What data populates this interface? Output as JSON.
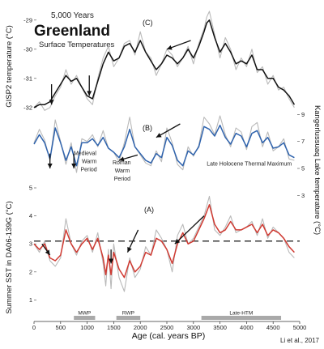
{
  "chart_data": [
    {
      "type": "line",
      "panel_label": "(C)",
      "title_lines": [
        "5,000 Years",
        "Greenland",
        "Surface Temperatures"
      ],
      "ylabel": "GISP2 temperature (°C)",
      "yticks": [
        -29,
        -30,
        -31,
        -32
      ],
      "ylim": [
        -32.2,
        -28.7
      ],
      "xlim": [
        0,
        5000
      ],
      "raw_color": "#b9b9b9",
      "smooth_color": "#111111",
      "series": [
        {
          "role": "raw",
          "x": [
            0,
            100,
            200,
            300,
            400,
            500,
            600,
            700,
            800,
            900,
            1000,
            1100,
            1200,
            1300,
            1400,
            1500,
            1600,
            1700,
            1800,
            1900,
            2000,
            2100,
            2200,
            2300,
            2400,
            2500,
            2600,
            2700,
            2800,
            2900,
            3000,
            3100,
            3200,
            3250,
            3300,
            3400,
            3500,
            3600,
            3700,
            3800,
            3900,
            4000,
            4100,
            4200,
            4300,
            4400,
            4500,
            4600,
            4700,
            4800,
            4900
          ],
          "y": [
            -32.0,
            -31.8,
            -32.1,
            -32.0,
            -31.6,
            -31.3,
            -30.7,
            -31.2,
            -30.9,
            -31.3,
            -31.7,
            -31.9,
            -31.0,
            -30.3,
            -29.9,
            -30.6,
            -30.3,
            -29.8,
            -29.7,
            -30.2,
            -29.4,
            -30.1,
            -30.3,
            -30.9,
            -30.5,
            -30.0,
            -30.2,
            -30.6,
            -30.3,
            -29.9,
            -30.5,
            -29.8,
            -29.3,
            -28.9,
            -28.7,
            -29.5,
            -30.3,
            -29.6,
            -30.0,
            -30.7,
            -30.3,
            -30.6,
            -30.0,
            -30.8,
            -30.6,
            -31.2,
            -30.9,
            -31.4,
            -31.3,
            -31.7,
            -32.0
          ]
        },
        {
          "role": "smoothed",
          "x": [
            0,
            100,
            200,
            300,
            400,
            500,
            600,
            700,
            800,
            900,
            1000,
            1100,
            1200,
            1300,
            1400,
            1500,
            1600,
            1700,
            1800,
            1900,
            2000,
            2100,
            2200,
            2300,
            2400,
            2500,
            2600,
            2700,
            2800,
            2900,
            3000,
            3100,
            3200,
            3250,
            3300,
            3400,
            3500,
            3600,
            3700,
            3800,
            3900,
            4000,
            4100,
            4200,
            4300,
            4400,
            4500,
            4600,
            4700,
            4800,
            4900
          ],
          "y": [
            -32.0,
            -31.9,
            -31.9,
            -31.8,
            -31.5,
            -31.2,
            -30.9,
            -31.1,
            -31.0,
            -31.3,
            -31.6,
            -31.7,
            -31.1,
            -30.5,
            -30.1,
            -30.4,
            -30.3,
            -29.9,
            -29.8,
            -30.1,
            -29.7,
            -30.1,
            -30.4,
            -30.7,
            -30.5,
            -30.2,
            -30.3,
            -30.5,
            -30.3,
            -30.0,
            -30.3,
            -29.9,
            -29.4,
            -29.1,
            -29.0,
            -29.6,
            -30.1,
            -29.8,
            -30.1,
            -30.5,
            -30.4,
            -30.5,
            -30.2,
            -30.7,
            -30.7,
            -31.0,
            -31.0,
            -31.3,
            -31.4,
            -31.6,
            -31.9
          ]
        }
      ],
      "arrows": [
        {
          "x1": 330,
          "y1": -31.2,
          "x2": 330,
          "y2": -31.9
        },
        {
          "x1": 1040,
          "y1": -30.9,
          "x2": 1040,
          "y2": -31.6
        },
        {
          "x1": 2950,
          "y1": -29.7,
          "x2": 2500,
          "y2": -30.0
        }
      ]
    },
    {
      "type": "line",
      "panel_label": "(B)",
      "ylabel": "Kangerlussuaq Lake temperature (°C)",
      "ylabel_side": "right",
      "yticks": [
        9,
        7,
        5,
        3
      ],
      "ylim": [
        2.6,
        9.2
      ],
      "xlim": [
        0,
        5000
      ],
      "raw_color": "#b9b9b9",
      "smooth_color": "#2f63ad",
      "annotations": [
        {
          "text": "Medieval",
          "x": 960,
          "y": 6.0
        },
        {
          "text": "Warm",
          "x": 1040,
          "y": 5.4
        },
        {
          "text": "Period",
          "x": 1030,
          "y": 4.8
        },
        {
          "text": "Roman",
          "x": 1650,
          "y": 5.3
        },
        {
          "text": "Warm",
          "x": 1660,
          "y": 4.7
        },
        {
          "text": "Period",
          "x": 1660,
          "y": 4.1
        },
        {
          "text": "Late Holocene Thermal Maximum",
          "x": 4050,
          "y": 5.2
        }
      ],
      "series": [
        {
          "role": "raw",
          "x": [
            0,
            100,
            200,
            300,
            400,
            500,
            600,
            700,
            800,
            900,
            1000,
            1100,
            1200,
            1300,
            1400,
            1500,
            1600,
            1700,
            1800,
            1900,
            2000,
            2100,
            2200,
            2300,
            2400,
            2500,
            2600,
            2700,
            2800,
            2900,
            3000,
            3100,
            3200,
            3300,
            3400,
            3500,
            3600,
            3700,
            3800,
            3900,
            4000,
            4100,
            4200,
            4300,
            4400,
            4500,
            4600,
            4700,
            4800,
            4900
          ],
          "y": [
            6.9,
            7.9,
            7.1,
            5.6,
            8.6,
            7.0,
            5.3,
            6.9,
            4.7,
            7.2,
            7.0,
            7.5,
            6.6,
            7.8,
            6.5,
            6.2,
            5.5,
            6.9,
            8.8,
            6.6,
            6.0,
            5.4,
            5.2,
            6.3,
            5.5,
            8.0,
            6.9,
            5.3,
            4.9,
            6.6,
            5.9,
            6.7,
            8.8,
            8.3,
            7.5,
            8.9,
            7.5,
            6.6,
            8.0,
            7.7,
            6.4,
            8.1,
            8.4,
            6.6,
            7.7,
            6.3,
            6.6,
            7.2,
            5.7,
            5.6
          ]
        },
        {
          "role": "smoothed",
          "x": [
            0,
            100,
            200,
            300,
            400,
            500,
            600,
            700,
            800,
            900,
            1000,
            1100,
            1200,
            1300,
            1400,
            1500,
            1600,
            1700,
            1800,
            1900,
            2000,
            2100,
            2200,
            2300,
            2400,
            2500,
            2600,
            2700,
            2800,
            2900,
            3000,
            3100,
            3200,
            3300,
            3400,
            3500,
            3600,
            3700,
            3800,
            3900,
            4000,
            4100,
            4200,
            4300,
            4400,
            4500,
            4600,
            4700,
            4800,
            4900
          ],
          "y": [
            6.8,
            7.5,
            6.9,
            5.7,
            8.0,
            6.9,
            5.6,
            6.6,
            5.2,
            6.9,
            6.9,
            7.2,
            6.7,
            7.3,
            6.5,
            6.2,
            5.8,
            6.6,
            7.9,
            6.6,
            6.1,
            5.6,
            5.4,
            6.1,
            5.8,
            7.3,
            6.7,
            5.6,
            5.2,
            6.3,
            6.0,
            6.6,
            8.1,
            7.9,
            7.4,
            8.2,
            7.3,
            6.8,
            7.6,
            7.4,
            6.6,
            7.6,
            7.8,
            6.9,
            7.3,
            6.5,
            6.6,
            6.9,
            6.0,
            5.8
          ]
        }
      ],
      "arrows": [
        {
          "x1": 300,
          "y1": 6.1,
          "x2": 300,
          "y2": 5.0
        },
        {
          "x1": 750,
          "y1": 6.1,
          "x2": 750,
          "y2": 5.0
        },
        {
          "x1": 1950,
          "y1": 6.0,
          "x2": 1600,
          "y2": 5.6
        },
        {
          "x1": 2750,
          "y1": 8.3,
          "x2": 2300,
          "y2": 7.3
        }
      ]
    },
    {
      "type": "line",
      "panel_label": "(A)",
      "ylabel": "Summer SST in DA06-139G (°C)",
      "yticks": [
        5,
        4,
        3,
        2,
        1
      ],
      "ylim": [
        0.55,
        5.0
      ],
      "xlim": [
        0,
        5000
      ],
      "xticks": [
        0,
        500,
        1000,
        1500,
        2000,
        2500,
        3000,
        3500,
        4000,
        4500,
        5000
      ],
      "xlabel": "Age (cal. years BP)",
      "reference_line": 3.1,
      "raw_color": "#b9b9b9",
      "smooth_color": "#d03a32",
      "periods": [
        {
          "label": "MWP",
          "start": 750,
          "end": 1150
        },
        {
          "label": "RWP",
          "start": 1550,
          "end": 2000
        },
        {
          "label": "Late-HTM",
          "start": 3150,
          "end": 4650
        }
      ],
      "series": [
        {
          "role": "raw",
          "x": [
            0,
            100,
            200,
            300,
            400,
            500,
            600,
            700,
            800,
            900,
            1000,
            1100,
            1200,
            1300,
            1350,
            1400,
            1450,
            1500,
            1600,
            1700,
            1800,
            1900,
            2000,
            2100,
            2200,
            2300,
            2400,
            2500,
            2600,
            2700,
            2800,
            2900,
            3000,
            3100,
            3200,
            3300,
            3400,
            3500,
            3600,
            3700,
            3800,
            3900,
            4000,
            4100,
            4200,
            4300,
            4400,
            4500,
            4600,
            4700,
            4800,
            4900
          ],
          "y": [
            3.0,
            2.7,
            3.1,
            2.4,
            2.2,
            2.5,
            3.9,
            3.0,
            2.6,
            3.1,
            3.3,
            2.7,
            3.4,
            2.3,
            1.5,
            2.8,
            1.4,
            3.0,
            1.8,
            1.3,
            2.5,
            1.8,
            2.1,
            2.9,
            2.6,
            3.5,
            3.2,
            2.8,
            2.0,
            3.3,
            3.7,
            3.0,
            3.2,
            3.6,
            4.0,
            4.7,
            3.5,
            3.3,
            3.6,
            4.0,
            3.4,
            3.5,
            3.6,
            3.8,
            3.3,
            3.9,
            3.2,
            3.6,
            3.4,
            3.2,
            2.7,
            2.5
          ]
        },
        {
          "role": "smoothed",
          "x": [
            0,
            100,
            200,
            300,
            400,
            500,
            600,
            700,
            800,
            900,
            1000,
            1100,
            1200,
            1300,
            1350,
            1400,
            1450,
            1500,
            1600,
            1700,
            1800,
            1900,
            2000,
            2100,
            2200,
            2300,
            2400,
            2500,
            2600,
            2700,
            2800,
            2900,
            3000,
            3100,
            3200,
            3300,
            3400,
            3500,
            3600,
            3700,
            3800,
            3900,
            4000,
            4100,
            4200,
            4300,
            4400,
            4500,
            4600,
            4700,
            4800,
            4900
          ],
          "y": [
            3.0,
            2.8,
            3.0,
            2.5,
            2.4,
            2.6,
            3.5,
            3.0,
            2.7,
            3.0,
            3.2,
            2.8,
            3.2,
            2.5,
            1.9,
            2.6,
            1.9,
            2.7,
            2.1,
            1.8,
            2.4,
            2.0,
            2.2,
            2.7,
            2.6,
            3.2,
            3.1,
            2.8,
            2.3,
            3.0,
            3.4,
            3.0,
            3.1,
            3.5,
            3.9,
            4.4,
            3.7,
            3.4,
            3.5,
            3.8,
            3.5,
            3.5,
            3.6,
            3.7,
            3.4,
            3.7,
            3.3,
            3.5,
            3.4,
            3.2,
            2.9,
            2.7
          ]
        }
      ],
      "arrows": [
        {
          "x1": 150,
          "y1": 3.0,
          "x2": 300,
          "y2": 2.6
        },
        {
          "x1": 1450,
          "y1": 2.8,
          "x2": 1450,
          "y2": 2.3
        },
        {
          "x1": 1960,
          "y1": 3.5,
          "x2": 1760,
          "y2": 2.7
        },
        {
          "x1": 3200,
          "y1": 4.0,
          "x2": 2650,
          "y2": 3.0
        }
      ]
    }
  ],
  "credit": "Li et al., 2017"
}
